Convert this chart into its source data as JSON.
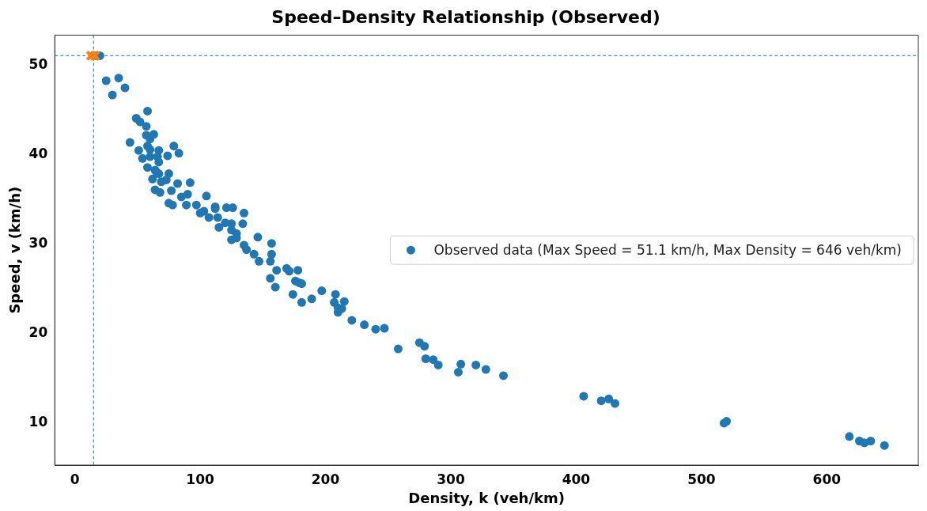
{
  "chart_data": {
    "type": "scatter",
    "title": "Speed–Density Relationship (Observed)",
    "xlabel": "Density, k (veh/km)",
    "ylabel": "Speed, v (km/h)",
    "xlim": [
      -16,
      673
    ],
    "xticks": [
      0,
      100,
      200,
      300,
      400,
      500,
      600
    ],
    "ylim": [
      5.3,
      53.4
    ],
    "yticks": [
      10,
      20,
      30,
      40,
      50
    ],
    "grid": false,
    "legend": "right",
    "marker": "circle",
    "series": [
      {
        "name": "Observed data (Max Speed = 51.1 km/h, Max Density = 646 veh/km)",
        "color": "#1f77b4",
        "x": [
          17,
          20,
          25,
          35,
          40,
          30,
          58,
          49,
          52,
          57,
          44,
          57,
          63,
          60,
          58,
          60,
          51,
          67,
          79,
          83,
          74,
          60,
          66,
          54,
          67,
          58,
          64,
          65,
          67,
          75,
          69,
          73,
          62,
          82,
          92,
          64,
          68,
          77,
          85,
          90,
          105,
          75,
          78,
          89,
          97,
          100,
          103,
          112,
          112,
          121,
          126,
          135,
          107,
          114,
          115,
          120,
          125,
          134,
          125,
          129,
          125,
          129,
          146,
          135,
          137,
          143,
          147,
          157,
          157,
          156,
          161,
          169,
          171,
          178,
          156,
          160,
          176,
          179,
          181,
          174,
          181,
          189,
          197,
          208,
          207,
          215,
          210,
          213,
          210,
          221,
          231,
          240,
          247,
          258,
          275,
          279,
          280,
          286,
          290,
          308,
          306,
          320,
          328,
          342,
          406,
          420,
          426,
          431,
          518,
          520,
          618,
          626,
          630,
          635,
          646
        ],
        "values": [
          51.1,
          51.1,
          48.3,
          48.6,
          47.5,
          46.7,
          44.9,
          44.1,
          43.7,
          43.2,
          41.4,
          42.2,
          42.3,
          41.8,
          41.0,
          40.6,
          40.5,
          40.5,
          41.0,
          40.2,
          39.9,
          39.8,
          39.8,
          39.6,
          39.2,
          38.6,
          38.3,
          38.1,
          37.9,
          37.9,
          37.0,
          37.2,
          37.3,
          36.8,
          36.9,
          36.1,
          35.8,
          36.0,
          35.3,
          35.6,
          35.4,
          34.6,
          34.4,
          34.4,
          34.4,
          33.5,
          33.7,
          34.2,
          34.0,
          34.1,
          34.1,
          33.5,
          33.0,
          33.0,
          31.9,
          32.4,
          32.3,
          32.3,
          31.6,
          31.2,
          30.5,
          30.7,
          30.8,
          29.9,
          29.4,
          28.9,
          28.1,
          30.1,
          28.9,
          28.1,
          27.1,
          27.3,
          27.0,
          27.1,
          26.2,
          25.2,
          25.9,
          25.7,
          25.6,
          24.4,
          23.5,
          23.9,
          24.8,
          24.4,
          23.5,
          23.6,
          22.9,
          22.8,
          22.4,
          21.5,
          21.0,
          20.5,
          20.6,
          18.3,
          19.0,
          18.6,
          17.2,
          17.1,
          16.5,
          16.6,
          15.7,
          16.5,
          16.0,
          15.3,
          13.0,
          12.5,
          12.7,
          12.2,
          10.0,
          10.2,
          8.5,
          8.0,
          7.8,
          8.0,
          7.5
        ]
      },
      {
        "color": "#ff7f0e",
        "marker": "cross",
        "x": [
          13,
          16
        ],
        "values": [
          51.1,
          51.1
        ]
      }
    ],
    "ref_lines": [
      {
        "axis": "x",
        "value": 15,
        "color": "#4a90c8",
        "line_style": "dashed"
      },
      {
        "axis": "y",
        "value": 51.1,
        "color": "#4a90c8",
        "line_style": "dashed"
      }
    ]
  }
}
